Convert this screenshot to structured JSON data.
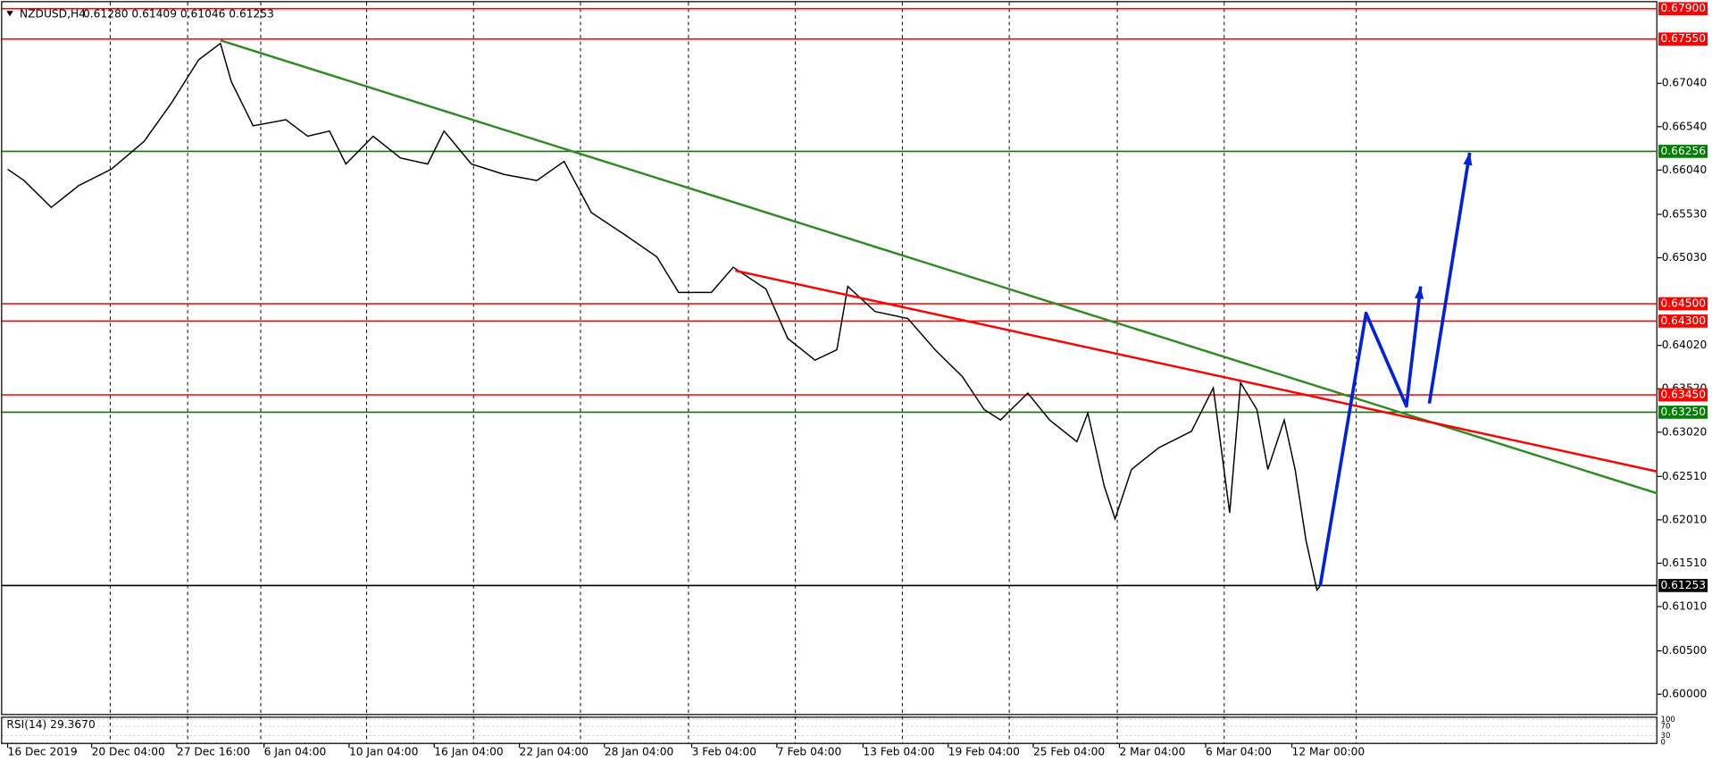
{
  "chart_data": {
    "type": "line",
    "title": "NZDUSD,H4",
    "subtitle": "0.61280 0.61409 0.61046 0.61253",
    "color": "#000000",
    "x": [
      1.25,
      5,
      11.25,
      17.5,
      25,
      32.5,
      38.75,
      45,
      50,
      52.5,
      57.5,
      65,
      70,
      75,
      78.75,
      85,
      91.25,
      97.5,
      101.25,
      107.5,
      115,
      122.5,
      128.75,
      135,
      142.5,
      150,
      155,
      162.5,
      167.5,
      175,
      180,
      186.25,
      191.25,
      193.75,
      200,
      207.5,
      213.75,
      220,
      225,
      228.75,
      235,
      240,
      246.25,
      248.75,
      252.5,
      255,
      258.75,
      265,
      272.5,
      277.5,
      281.25,
      283.75,
      287.5,
      290,
      293.75,
      296.25,
      298.75,
      301.25,
      302
    ],
    "values": [
      0.6605,
      0.6592,
      0.6561,
      0.6586,
      0.6605,
      0.6637,
      0.6681,
      0.6731,
      0.675,
      0.6706,
      0.6655,
      0.6662,
      0.6643,
      0.6649,
      0.6611,
      0.6643,
      0.6618,
      0.6611,
      0.6649,
      0.6611,
      0.6599,
      0.6592,
      0.6614,
      0.6555,
      0.653,
      0.6504,
      0.6463,
      0.6463,
      0.6492,
      0.6467,
      0.641,
      0.6385,
      0.6397,
      0.647,
      0.6441,
      0.6433,
      0.6397,
      0.6366,
      0.6328,
      0.6316,
      0.6347,
      0.6316,
      0.6291,
      0.6324,
      0.624,
      0.6202,
      0.6259,
      0.6284,
      0.6303,
      0.6353,
      0.6209,
      0.6359,
      0.6328,
      0.6259,
      0.6316,
      0.6259,
      0.6177,
      0.612,
      0.6125
    ],
    "xlim": [
      0,
      379.25
    ],
    "ylim": [
      0.5976,
      0.68
    ],
    "yticks": [
      {
        "value": 0.6704,
        "label": "0.67040"
      },
      {
        "value": 0.6654,
        "label": "0.66540"
      },
      {
        "value": 0.6604,
        "label": "0.66040"
      },
      {
        "value": 0.6553,
        "label": "0.65530"
      },
      {
        "value": 0.6503,
        "label": "0.65030"
      },
      {
        "value": 0.6402,
        "label": "0.64020"
      },
      {
        "value": 0.6352,
        "label": "0.63520"
      },
      {
        "value": 0.6302,
        "label": "0.63020"
      },
      {
        "value": 0.6251,
        "label": "0.62510"
      },
      {
        "value": 0.6201,
        "label": "0.62010"
      },
      {
        "value": 0.6151,
        "label": "0.61510"
      },
      {
        "value": 0.6101,
        "label": "0.61010"
      },
      {
        "value": 0.605,
        "label": "0.60500"
      },
      {
        "value": 0.6,
        "label": "0.60000"
      }
    ],
    "xticks": [
      {
        "value": 1.25,
        "label": "16 Dec 2019"
      },
      {
        "value": 20.5,
        "label": "20 Dec 04:00"
      },
      {
        "value": 40,
        "label": "27 Dec 16:00"
      },
      {
        "value": 60,
        "label": "6 Jan 04:00"
      },
      {
        "value": 79.5,
        "label": "10 Jan 04:00"
      },
      {
        "value": 99,
        "label": "16 Jan 04:00"
      },
      {
        "value": 118.5,
        "label": "22 Jan 04:00"
      },
      {
        "value": 138,
        "label": "28 Jan 04:00"
      },
      {
        "value": 158,
        "label": "3 Feb 04:00"
      },
      {
        "value": 177.5,
        "label": "7 Feb 04:00"
      },
      {
        "value": 197.25,
        "label": "13 Feb 04:00"
      },
      {
        "value": 216.75,
        "label": "19 Feb 04:00"
      },
      {
        "value": 236.25,
        "label": "25 Feb 04:00"
      },
      {
        "value": 256,
        "label": "2 Mar 04:00"
      },
      {
        "value": 275.75,
        "label": "6 Mar 04:00"
      },
      {
        "value": 295.5,
        "label": "12 Mar 00:00"
      }
    ],
    "xgrid": [
      24.75,
      42.5,
      59.25,
      83.5,
      108,
      132.5,
      157.25,
      181.75,
      206.25,
      230.75,
      255.5,
      280,
      310.25
    ],
    "levels": [
      {
        "value": 0.679,
        "label": "0.67900",
        "color": "#ff0000"
      },
      {
        "value": 0.6755,
        "label": "0.67550",
        "color": "#ff0000"
      },
      {
        "value": 0.66256,
        "label": "0.66256",
        "color": "#008000"
      },
      {
        "value": 0.645,
        "label": "0.64500",
        "color": "#ff0000"
      },
      {
        "value": 0.643,
        "label": "0.64300",
        "color": "#ff0000"
      },
      {
        "value": 0.6345,
        "label": "0.63450",
        "color": "#ff0000"
      },
      {
        "value": 0.6325,
        "label": "0.63250",
        "color": "#008000"
      },
      {
        "value": 0.61253,
        "label": "0.61253",
        "color": "#000000"
      }
    ],
    "trendlines": [
      {
        "x": [
          50,
          379.25
        ],
        "values": [
          0.67535,
          0.62314
        ],
        "color": "#2e8b22"
      },
      {
        "x": [
          168,
          379.25
        ],
        "values": [
          0.64881,
          0.62566
        ],
        "color": "#ff0000"
      }
    ],
    "arrows": [
      {
        "x": [
          302,
          312.5,
          321.75,
          325
        ],
        "values": [
          0.6125,
          0.6439,
          0.6332,
          0.647
        ],
        "color": "#0022dd"
      },
      {
        "x": [
          327,
          336.25
        ],
        "values": [
          0.6335,
          0.6624
        ],
        "color": "#0022dd"
      }
    ],
    "rsi": {
      "label": "RSI(14) 29.3670",
      "yticks": [
        100,
        70,
        30,
        0
      ]
    }
  }
}
